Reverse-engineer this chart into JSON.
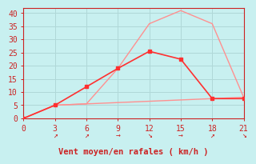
{
  "title": "",
  "xlabel": "Vent moyen/en rafales ( km/h )",
  "bg_color": "#c8f0f0",
  "grid_color": "#b0d8d8",
  "line1_color": "#ff9090",
  "line2_color": "#ff3030",
  "line1_x": [
    0,
    3,
    6,
    9,
    12,
    15,
    18,
    21
  ],
  "line1_y": [
    0,
    5,
    5.5,
    19,
    36,
    41,
    36,
    8
  ],
  "line2_x": [
    0,
    3,
    6,
    9,
    12,
    15,
    18,
    21
  ],
  "line2_y": [
    0,
    5,
    12,
    19,
    25.5,
    22.5,
    7.5,
    7.5
  ],
  "line3_x": [
    0,
    3,
    6,
    12,
    18,
    21
  ],
  "line3_y": [
    0,
    5,
    5.5,
    6.5,
    7.5,
    8
  ],
  "xlim": [
    0,
    21
  ],
  "ylim": [
    0,
    42
  ],
  "xticks": [
    0,
    3,
    6,
    9,
    12,
    15,
    18,
    21
  ],
  "yticks": [
    0,
    5,
    10,
    15,
    20,
    25,
    30,
    35,
    40
  ],
  "arrow_annotations": [
    {
      "x": 3,
      "text": "↗"
    },
    {
      "x": 6,
      "text": "↗"
    },
    {
      "x": 9,
      "text": "→"
    },
    {
      "x": 12,
      "text": "↘"
    },
    {
      "x": 15,
      "text": "→"
    },
    {
      "x": 18,
      "text": "↗"
    },
    {
      "x": 21,
      "text": "↘"
    }
  ],
  "tick_color": "#cc2222",
  "spine_color": "#cc2222",
  "xlabel_color": "#cc2222",
  "xlabel_fontsize": 7.5,
  "tick_fontsize": 7,
  "arrow_fontsize": 7
}
